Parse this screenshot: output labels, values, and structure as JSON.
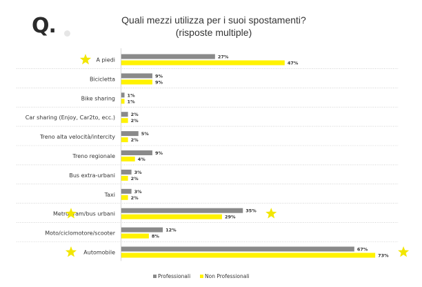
{
  "header": {
    "q_label": "Q.",
    "title_line1": "Quali mezzi utilizza per i suoi spostamenti?",
    "title_line2": "(risposte multiple)"
  },
  "colors": {
    "professionali": "#8a8a8a",
    "non_professionali": "#fff200",
    "star": "#f2e600",
    "separator": "#b4b4b4",
    "text": "#333333"
  },
  "chart_data": {
    "type": "bar",
    "orientation": "horizontal",
    "categories": [
      "A piedi",
      "Bicicletta",
      "Bike sharing",
      "Car sharing (Enjoy, Car2to, ecc.)",
      "Treno alta velocità/intercity",
      "Treno regionale",
      "Bus extra-urbani",
      "Taxi",
      "Metro/tram/bus urbani",
      "Moto/ciclomotore/scooter",
      "Automobile"
    ],
    "series": [
      {
        "name": "Professionali",
        "color": "#8a8a8a",
        "values": [
          27,
          9,
          1,
          2,
          5,
          9,
          3,
          3,
          35,
          12,
          67
        ],
        "value_labels": [
          "27%",
          "9%",
          "1%",
          "2%",
          "5%",
          "9%",
          "3%",
          "3%",
          "35%",
          "12%",
          "67%"
        ]
      },
      {
        "name": "Non Professionali",
        "color": "#fff200",
        "values": [
          47,
          9,
          1,
          2,
          2,
          4,
          2,
          2,
          29,
          8,
          73
        ],
        "value_labels": [
          "47%",
          "9%",
          "1%",
          "2%",
          "2%",
          "4%",
          "2%",
          "2%",
          "29%",
          "8%",
          "73%"
        ]
      }
    ],
    "highlighted_categories": [
      0,
      8,
      10
    ],
    "xlim": [
      0,
      100
    ],
    "grid": false,
    "legend_position": "bottom"
  }
}
